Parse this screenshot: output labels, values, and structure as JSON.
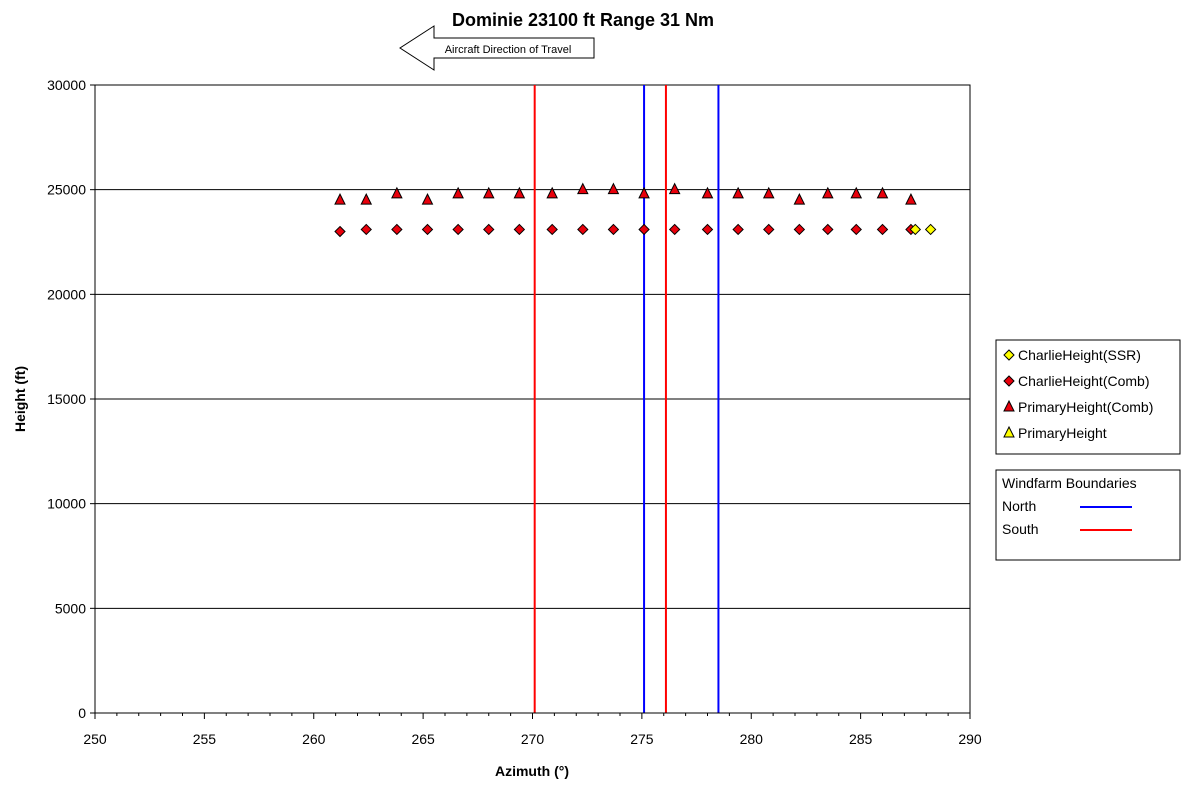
{
  "chart_data": {
    "type": "scatter",
    "title": "Dominie 23100 ft Range 31 Nm",
    "annotation": "Aircraft Direction of Travel",
    "xlabel": "Azimuth (°)",
    "ylabel": "Height (ft)",
    "xlim": [
      250,
      290
    ],
    "ylim": [
      0,
      30000
    ],
    "x_ticks": [
      250,
      255,
      260,
      265,
      270,
      275,
      280,
      285,
      290
    ],
    "y_ticks": [
      0,
      5000,
      10000,
      15000,
      20000,
      25000,
      30000
    ],
    "grid": "horizontal",
    "legend_position": "right",
    "series": [
      {
        "name": "CharlieHeight(SSR)",
        "marker": "diamond",
        "color": "#FFFF00",
        "x": [
          287.5,
          288.2
        ],
        "y": [
          23100,
          23100
        ]
      },
      {
        "name": "CharlieHeight(Comb)",
        "marker": "diamond",
        "color": "#E8000B",
        "x": [
          261.2,
          262.4,
          263.8,
          265.2,
          266.6,
          268.0,
          269.4,
          270.9,
          272.3,
          273.7,
          275.1,
          276.5,
          278.0,
          279.4,
          280.8,
          282.2,
          283.5,
          284.8,
          286.0,
          287.3
        ],
        "y": [
          23000,
          23100,
          23100,
          23100,
          23100,
          23100,
          23100,
          23100,
          23100,
          23100,
          23100,
          23100,
          23100,
          23100,
          23100,
          23100,
          23100,
          23100,
          23100,
          23100
        ]
      },
      {
        "name": "PrimaryHeight(Comb)",
        "marker": "triangle",
        "color": "#E8000B",
        "x": [
          261.2,
          262.4,
          263.8,
          265.2,
          266.6,
          268.0,
          269.4,
          270.9,
          272.3,
          273.7,
          275.1,
          276.5,
          278.0,
          279.4,
          280.8,
          282.2,
          283.5,
          284.8,
          286.0,
          287.3
        ],
        "y": [
          24500,
          24500,
          24800,
          24500,
          24800,
          24800,
          24800,
          24800,
          25000,
          25000,
          24800,
          25000,
          24800,
          24800,
          24800,
          24500,
          24800,
          24800,
          24800,
          24500
        ]
      },
      {
        "name": "PrimaryHeight",
        "marker": "triangle",
        "color": "#FFFF00",
        "x": [],
        "y": []
      }
    ],
    "boundaries_legend_title": "Windfarm Boundaries",
    "boundaries": [
      {
        "name": "North",
        "color": "#0000FF",
        "x": [
          275.1,
          278.5
        ]
      },
      {
        "name": "South",
        "color": "#FF0000",
        "x": [
          270.1,
          276.1
        ]
      }
    ]
  }
}
